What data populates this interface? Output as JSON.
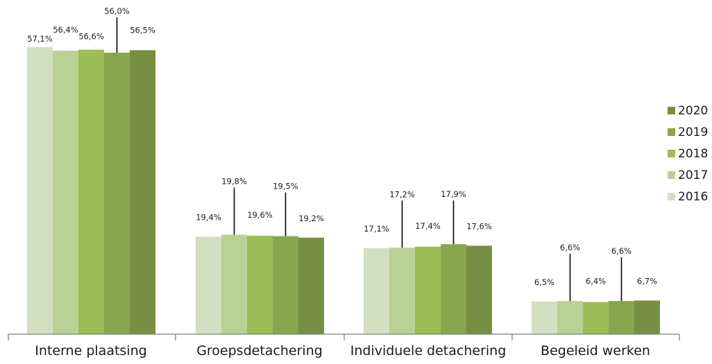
{
  "chart_data": {
    "type": "bar",
    "title": "",
    "xlabel": "",
    "ylabel": "",
    "ylim": [
      0,
      60
    ],
    "grid": false,
    "legend_position": "right",
    "categories": [
      "Interne plaatsing",
      "Groepsdetachering",
      "Individuele detachering",
      "Begeleid werken"
    ],
    "series": [
      {
        "name": "2016",
        "color": "#d2dfc1",
        "values": [
          57.1,
          19.4,
          17.1,
          6.5
        ],
        "labels": [
          "57,1%",
          "19,4%",
          "17,1%",
          "6,5%"
        ]
      },
      {
        "name": "2017",
        "color": "#bad196",
        "values": [
          56.4,
          19.8,
          17.2,
          6.6
        ],
        "labels": [
          "56,4%",
          "19,8%",
          "17,2%",
          "6,6%"
        ]
      },
      {
        "name": "2018",
        "color": "#9dbd57",
        "values": [
          56.6,
          19.6,
          17.4,
          6.4
        ],
        "labels": [
          "56,6%",
          "19,6%",
          "17,4%",
          "6,4%"
        ]
      },
      {
        "name": "2019",
        "color": "#88a64d",
        "values": [
          56.0,
          19.5,
          17.9,
          6.6
        ],
        "labels": [
          "56,0%",
          "19,5%",
          "17,9%",
          "6,6%"
        ]
      },
      {
        "name": "2020",
        "color": "#778f42",
        "values": [
          56.5,
          19.2,
          17.6,
          6.7
        ],
        "labels": [
          "56,5%",
          "19,2%",
          "17,6%",
          "6,7%"
        ]
      }
    ],
    "legend_order": [
      "2020",
      "2019",
      "2018",
      "2017",
      "2016"
    ],
    "axis_color": "#7f7f7f",
    "leader_color": "#000000"
  }
}
